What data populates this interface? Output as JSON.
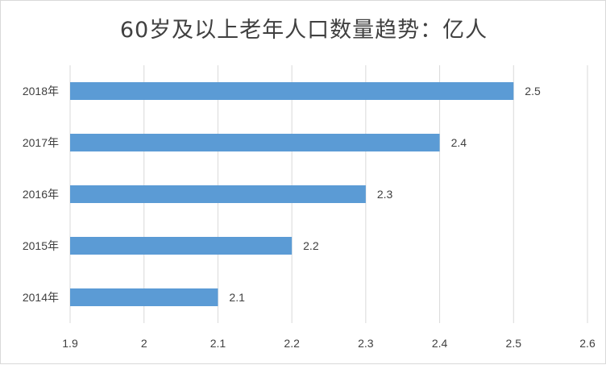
{
  "chart_data": {
    "type": "bar",
    "orientation": "horizontal",
    "title": "60岁及以上老年人口数量趋势：亿人",
    "categories": [
      "2018年",
      "2017年",
      "2016年",
      "2015年",
      "2014年"
    ],
    "values": [
      2.5,
      2.4,
      2.3,
      2.2,
      2.1
    ],
    "data_labels": [
      "2.5",
      "2.4",
      "2.3",
      "2.2",
      "2.1"
    ],
    "x_ticks": [
      "1.9",
      "2",
      "2.1",
      "2.2",
      "2.3",
      "2.4",
      "2.5",
      "2.6"
    ],
    "xlim": [
      1.9,
      2.6
    ],
    "xlabel": "",
    "ylabel": "",
    "grid": "vertical",
    "bar_color": "#5b9bd5",
    "grid_color": "#d9d9d9"
  }
}
